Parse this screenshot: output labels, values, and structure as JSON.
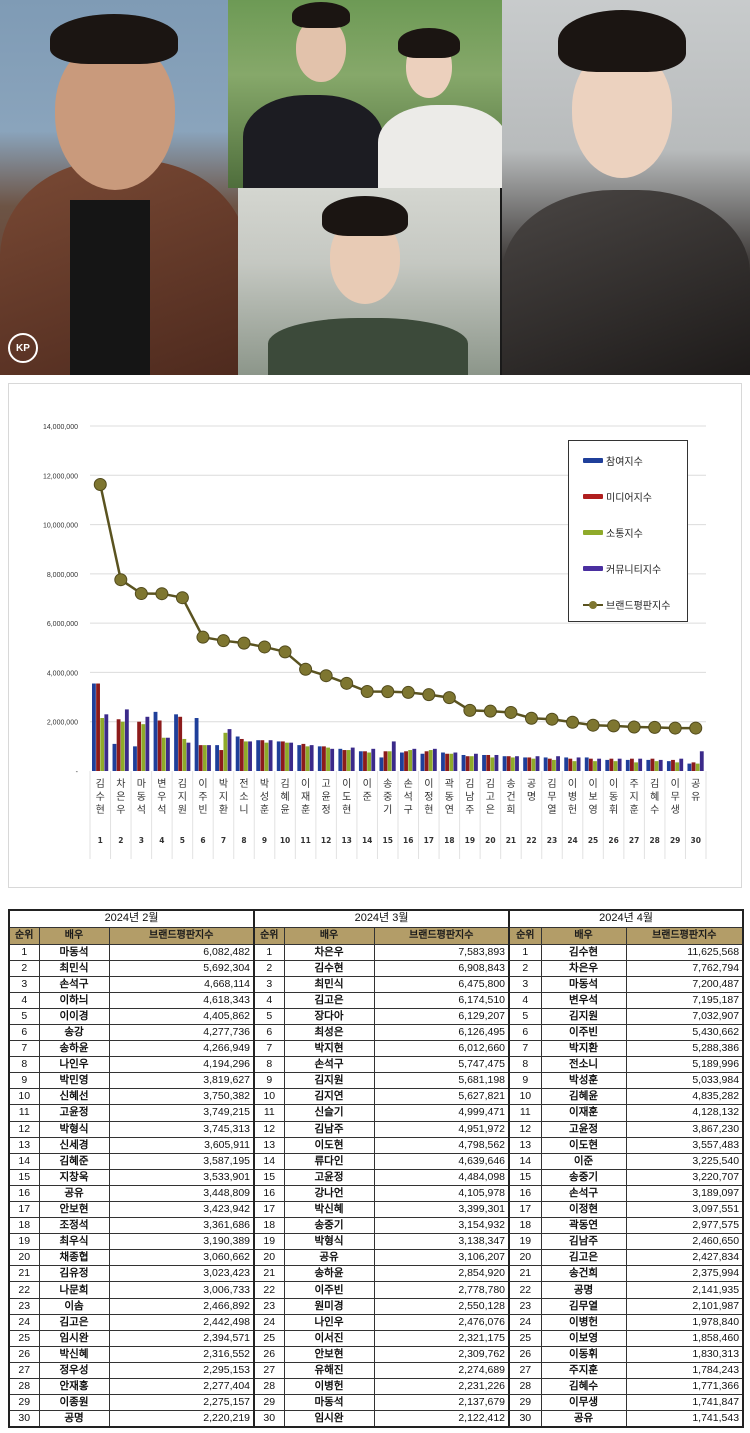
{
  "collage": {
    "watermark": "KP",
    "photos": [
      {
        "position": "left",
        "description": "actor in brown shearling jacket"
      },
      {
        "position": "center-top",
        "description": "couple in wedding attire"
      },
      {
        "position": "center-bottom",
        "description": "young actor smiling"
      },
      {
        "position": "right",
        "description": "actor in black leather jacket"
      }
    ]
  },
  "chart_data": {
    "type": "bar",
    "title": "",
    "xlabel": "",
    "ylabel": "",
    "ylim": [
      0,
      14000000
    ],
    "y_ticks": [
      "-",
      "2,000,000",
      "4,000,000",
      "6,000,000",
      "8,000,000",
      "10,000,000",
      "12,000,000",
      "14,000,000"
    ],
    "grid": true,
    "legend_position": "right-inside",
    "categories": [
      "김수현",
      "차은우",
      "마동석",
      "변우석",
      "김지원",
      "이주빈",
      "박지환",
      "전소니",
      "박성훈",
      "김혜윤",
      "이재훈",
      "고윤정",
      "이도현",
      "이준",
      "송중기",
      "손석구",
      "이정현",
      "곽동연",
      "김남주",
      "김고은",
      "송건희",
      "공명",
      "김무열",
      "이병헌",
      "이보영",
      "이동휘",
      "주지훈",
      "김혜수",
      "이무생",
      "공유"
    ],
    "rank_labels": [
      "1",
      "2",
      "3",
      "4",
      "5",
      "6",
      "7",
      "8",
      "9",
      "10",
      "11",
      "12",
      "13",
      "14",
      "15",
      "16",
      "17",
      "18",
      "19",
      "20",
      "21",
      "22",
      "23",
      "24",
      "25",
      "26",
      "27",
      "28",
      "29",
      "30"
    ],
    "series": [
      {
        "name": "참여지수",
        "type": "bar",
        "color": "#1f3f9a",
        "values": [
          3550000,
          1100000,
          1000000,
          2400000,
          2300000,
          2150000,
          1050000,
          1400000,
          1250000,
          1200000,
          1050000,
          1000000,
          900000,
          800000,
          550000,
          750000,
          700000,
          750000,
          650000,
          650000,
          600000,
          550000,
          550000,
          550000,
          550000,
          450000,
          450000,
          450000,
          400000,
          300000
        ]
      },
      {
        "name": "미디어지수",
        "type": "bar",
        "color": "#8c1b1b",
        "values": [
          3550000,
          2100000,
          2000000,
          2050000,
          2200000,
          1050000,
          850000,
          1300000,
          1250000,
          1200000,
          1100000,
          1000000,
          850000,
          800000,
          800000,
          800000,
          800000,
          700000,
          600000,
          650000,
          600000,
          550000,
          500000,
          500000,
          500000,
          500000,
          500000,
          500000,
          450000,
          350000
        ]
      },
      {
        "name": "소통지수",
        "type": "bar",
        "color": "#8faa2a",
        "values": [
          2150000,
          2000000,
          1900000,
          1350000,
          1300000,
          1050000,
          1550000,
          1200000,
          1150000,
          1150000,
          1000000,
          950000,
          850000,
          750000,
          800000,
          850000,
          850000,
          700000,
          600000,
          550000,
          550000,
          500000,
          450000,
          400000,
          400000,
          400000,
          350000,
          400000,
          350000,
          300000
        ]
      },
      {
        "name": "커뮤니티지수",
        "type": "bar",
        "color": "#3b2a8a",
        "values": [
          2300000,
          2500000,
          2200000,
          1350000,
          1150000,
          1050000,
          1700000,
          1200000,
          1250000,
          1150000,
          1050000,
          900000,
          950000,
          900000,
          1200000,
          900000,
          900000,
          750000,
          700000,
          650000,
          600000,
          600000,
          600000,
          550000,
          500000,
          500000,
          500000,
          450000,
          500000,
          800000
        ]
      },
      {
        "name": "브랜드평판지수",
        "type": "line",
        "color": "#6e6a2a",
        "values": [
          11625568,
          7762794,
          7200487,
          7195187,
          7032907,
          5430662,
          5288386,
          5189996,
          5033984,
          4835282,
          4128132,
          3867230,
          3557483,
          3225540,
          3220707,
          3189097,
          3097551,
          2977575,
          2460650,
          2427834,
          2375994,
          2141935,
          2101987,
          1978840,
          1858460,
          1830313,
          1784243,
          1771366,
          1741847,
          1741543
        ]
      }
    ]
  },
  "table": {
    "column_headers": {
      "rank": "순위",
      "actor": "배우",
      "score": "브랜드평판지수"
    },
    "months": [
      {
        "label": "2024년 2월",
        "rows": [
          {
            "rank": "1",
            "name": "마동석",
            "score": "6,082,482"
          },
          {
            "rank": "2",
            "name": "최민식",
            "score": "5,692,304"
          },
          {
            "rank": "3",
            "name": "손석구",
            "score": "4,668,114"
          },
          {
            "rank": "4",
            "name": "이하늬",
            "score": "4,618,343"
          },
          {
            "rank": "5",
            "name": "이이경",
            "score": "4,405,862"
          },
          {
            "rank": "6",
            "name": "송강",
            "score": "4,277,736"
          },
          {
            "rank": "7",
            "name": "송하윤",
            "score": "4,266,949"
          },
          {
            "rank": "8",
            "name": "나인우",
            "score": "4,194,296"
          },
          {
            "rank": "9",
            "name": "박민영",
            "score": "3,819,627"
          },
          {
            "rank": "10",
            "name": "신혜선",
            "score": "3,750,382"
          },
          {
            "rank": "11",
            "name": "고윤정",
            "score": "3,749,215"
          },
          {
            "rank": "12",
            "name": "박형식",
            "score": "3,745,313"
          },
          {
            "rank": "13",
            "name": "신세경",
            "score": "3,605,911"
          },
          {
            "rank": "14",
            "name": "김혜준",
            "score": "3,587,195"
          },
          {
            "rank": "15",
            "name": "지창욱",
            "score": "3,533,901"
          },
          {
            "rank": "16",
            "name": "공유",
            "score": "3,448,809"
          },
          {
            "rank": "17",
            "name": "안보현",
            "score": "3,423,942"
          },
          {
            "rank": "18",
            "name": "조정석",
            "score": "3,361,686"
          },
          {
            "rank": "19",
            "name": "최우식",
            "score": "3,190,389"
          },
          {
            "rank": "20",
            "name": "채종협",
            "score": "3,060,662"
          },
          {
            "rank": "21",
            "name": "김유정",
            "score": "3,023,423"
          },
          {
            "rank": "22",
            "name": "나문희",
            "score": "3,006,733"
          },
          {
            "rank": "23",
            "name": "이솜",
            "score": "2,466,892"
          },
          {
            "rank": "24",
            "name": "김고은",
            "score": "2,442,498"
          },
          {
            "rank": "25",
            "name": "임시완",
            "score": "2,394,571"
          },
          {
            "rank": "26",
            "name": "박신혜",
            "score": "2,316,552"
          },
          {
            "rank": "27",
            "name": "정우성",
            "score": "2,295,153"
          },
          {
            "rank": "28",
            "name": "안재홍",
            "score": "2,277,404"
          },
          {
            "rank": "29",
            "name": "이종원",
            "score": "2,275,157"
          },
          {
            "rank": "30",
            "name": "공명",
            "score": "2,220,219"
          }
        ]
      },
      {
        "label": "2024년 3월",
        "rows": [
          {
            "rank": "1",
            "name": "차은우",
            "score": "7,583,893"
          },
          {
            "rank": "2",
            "name": "김수현",
            "score": "6,908,843"
          },
          {
            "rank": "3",
            "name": "최민식",
            "score": "6,475,800"
          },
          {
            "rank": "4",
            "name": "김고은",
            "score": "6,174,510"
          },
          {
            "rank": "5",
            "name": "장다아",
            "score": "6,129,207"
          },
          {
            "rank": "6",
            "name": "최성은",
            "score": "6,126,495"
          },
          {
            "rank": "7",
            "name": "박지현",
            "score": "6,012,660"
          },
          {
            "rank": "8",
            "name": "손석구",
            "score": "5,747,475"
          },
          {
            "rank": "9",
            "name": "김지원",
            "score": "5,681,198"
          },
          {
            "rank": "10",
            "name": "김지연",
            "score": "5,627,821"
          },
          {
            "rank": "11",
            "name": "신슬기",
            "score": "4,999,471"
          },
          {
            "rank": "12",
            "name": "김남주",
            "score": "4,951,972"
          },
          {
            "rank": "13",
            "name": "이도현",
            "score": "4,798,562"
          },
          {
            "rank": "14",
            "name": "류다인",
            "score": "4,639,646"
          },
          {
            "rank": "15",
            "name": "고윤정",
            "score": "4,484,098"
          },
          {
            "rank": "16",
            "name": "강나언",
            "score": "4,105,978"
          },
          {
            "rank": "17",
            "name": "박신혜",
            "score": "3,399,301"
          },
          {
            "rank": "18",
            "name": "송중기",
            "score": "3,154,932"
          },
          {
            "rank": "19",
            "name": "박형식",
            "score": "3,138,347"
          },
          {
            "rank": "20",
            "name": "공유",
            "score": "3,106,207"
          },
          {
            "rank": "21",
            "name": "송하윤",
            "score": "2,854,920"
          },
          {
            "rank": "22",
            "name": "이주빈",
            "score": "2,778,780"
          },
          {
            "rank": "23",
            "name": "원미경",
            "score": "2,550,128"
          },
          {
            "rank": "24",
            "name": "나인우",
            "score": "2,476,076"
          },
          {
            "rank": "25",
            "name": "이서진",
            "score": "2,321,175"
          },
          {
            "rank": "26",
            "name": "안보현",
            "score": "2,309,762"
          },
          {
            "rank": "27",
            "name": "유해진",
            "score": "2,274,689"
          },
          {
            "rank": "28",
            "name": "이병헌",
            "score": "2,231,226"
          },
          {
            "rank": "29",
            "name": "마동석",
            "score": "2,137,679"
          },
          {
            "rank": "30",
            "name": "임시완",
            "score": "2,122,412"
          }
        ]
      },
      {
        "label": "2024년 4월",
        "rows": [
          {
            "rank": "1",
            "name": "김수현",
            "score": "11,625,568"
          },
          {
            "rank": "2",
            "name": "차은우",
            "score": "7,762,794"
          },
          {
            "rank": "3",
            "name": "마동석",
            "score": "7,200,487"
          },
          {
            "rank": "4",
            "name": "변우석",
            "score": "7,195,187"
          },
          {
            "rank": "5",
            "name": "김지원",
            "score": "7,032,907"
          },
          {
            "rank": "6",
            "name": "이주빈",
            "score": "5,430,662"
          },
          {
            "rank": "7",
            "name": "박지환",
            "score": "5,288,386"
          },
          {
            "rank": "8",
            "name": "전소니",
            "score": "5,189,996"
          },
          {
            "rank": "9",
            "name": "박성훈",
            "score": "5,033,984"
          },
          {
            "rank": "10",
            "name": "김혜윤",
            "score": "4,835,282"
          },
          {
            "rank": "11",
            "name": "이재훈",
            "score": "4,128,132"
          },
          {
            "rank": "12",
            "name": "고윤정",
            "score": "3,867,230"
          },
          {
            "rank": "13",
            "name": "이도현",
            "score": "3,557,483"
          },
          {
            "rank": "14",
            "name": "이준",
            "score": "3,225,540"
          },
          {
            "rank": "15",
            "name": "송중기",
            "score": "3,220,707"
          },
          {
            "rank": "16",
            "name": "손석구",
            "score": "3,189,097"
          },
          {
            "rank": "17",
            "name": "이정현",
            "score": "3,097,551"
          },
          {
            "rank": "18",
            "name": "곽동연",
            "score": "2,977,575"
          },
          {
            "rank": "19",
            "name": "김남주",
            "score": "2,460,650"
          },
          {
            "rank": "20",
            "name": "김고은",
            "score": "2,427,834"
          },
          {
            "rank": "21",
            "name": "송건희",
            "score": "2,375,994"
          },
          {
            "rank": "22",
            "name": "공명",
            "score": "2,141,935"
          },
          {
            "rank": "23",
            "name": "김무열",
            "score": "2,101,987"
          },
          {
            "rank": "24",
            "name": "이병헌",
            "score": "1,978,840"
          },
          {
            "rank": "25",
            "name": "이보영",
            "score": "1,858,460"
          },
          {
            "rank": "26",
            "name": "이동휘",
            "score": "1,830,313"
          },
          {
            "rank": "27",
            "name": "주지훈",
            "score": "1,784,243"
          },
          {
            "rank": "28",
            "name": "김혜수",
            "score": "1,771,366"
          },
          {
            "rank": "29",
            "name": "이무생",
            "score": "1,741,847"
          },
          {
            "rank": "30",
            "name": "공유",
            "score": "1,741,543"
          }
        ]
      }
    ]
  }
}
